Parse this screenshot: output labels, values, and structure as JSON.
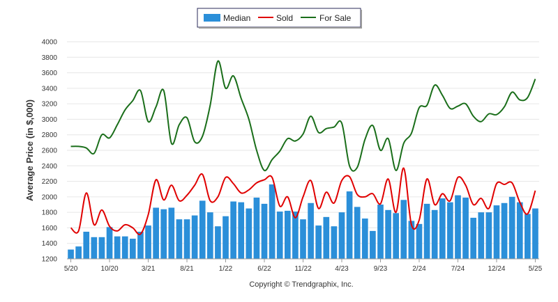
{
  "chart_data": {
    "type": "bar",
    "ylabel": "Average Price (in $,000)",
    "ylim": [
      1200,
      4000
    ],
    "yticks": [
      1200,
      1400,
      1600,
      1800,
      2000,
      2200,
      2400,
      2600,
      2800,
      3000,
      3200,
      3400,
      3600,
      3800,
      4000
    ],
    "xtick_labels": [
      "5/20",
      "10/20",
      "3/21",
      "8/21",
      "1/22",
      "6/22",
      "11/22",
      "4/23",
      "9/23",
      "2/24",
      "7/24",
      "12/24",
      "5/25"
    ],
    "xtick_every": 5,
    "grid": true,
    "legend_position": "top-center",
    "series": [
      {
        "name": "Median",
        "kind": "bar",
        "color": "#2b8fd9",
        "values": [
          1320,
          1360,
          1550,
          1480,
          1480,
          1610,
          1490,
          1490,
          1460,
          1550,
          1630,
          1860,
          1840,
          1860,
          1710,
          1710,
          1760,
          1950,
          1800,
          1620,
          1750,
          1940,
          1930,
          1850,
          1990,
          1910,
          2160,
          1810,
          1820,
          1810,
          1710,
          1920,
          1630,
          1740,
          1620,
          1800,
          2070,
          1870,
          1720,
          1560,
          1900,
          1830,
          1790,
          1960,
          1690,
          1650,
          1910,
          1830,
          1980,
          1930,
          2020,
          1990,
          1730,
          1800,
          1800,
          1890,
          1920,
          2000,
          1930,
          1780,
          1850
        ]
      },
      {
        "name": "Sold",
        "kind": "line",
        "color": "#e00000",
        "values": [
          1600,
          1560,
          2050,
          1640,
          1830,
          1620,
          1560,
          1640,
          1600,
          1520,
          1770,
          2220,
          1960,
          2150,
          1950,
          2020,
          2150,
          2290,
          1950,
          2000,
          2250,
          2170,
          2050,
          2090,
          2180,
          2220,
          2250,
          1880,
          2000,
          1730,
          2000,
          2210,
          1850,
          2060,
          1920,
          2210,
          2260,
          2030,
          2000,
          2040,
          1910,
          2230,
          1800,
          2370,
          1640,
          1700,
          2230,
          1900,
          2040,
          1950,
          2250,
          2150,
          1900,
          1980,
          1850,
          2170,
          2160,
          2180,
          1930,
          1780,
          2080
        ]
      },
      {
        "name": "For Sale",
        "kind": "line",
        "color": "#1a6e1a",
        "values": [
          2650,
          2650,
          2630,
          2560,
          2800,
          2760,
          2930,
          3120,
          3240,
          3370,
          2970,
          3160,
          3370,
          2690,
          2930,
          3020,
          2710,
          2780,
          3180,
          3750,
          3400,
          3560,
          3270,
          3000,
          2600,
          2340,
          2480,
          2590,
          2750,
          2720,
          2810,
          3040,
          2830,
          2880,
          2900,
          2950,
          2400,
          2380,
          2740,
          2920,
          2600,
          2750,
          2340,
          2690,
          2820,
          3150,
          3180,
          3440,
          3310,
          3140,
          3170,
          3200,
          3040,
          2970,
          3070,
          3060,
          3160,
          3350,
          3250,
          3280,
          3520
        ]
      }
    ]
  },
  "legend": {
    "median_label": "Median",
    "sold_label": "Sold",
    "for_sale_label": "For Sale"
  },
  "footer_text": "Copyright © Trendgraphix, Inc."
}
